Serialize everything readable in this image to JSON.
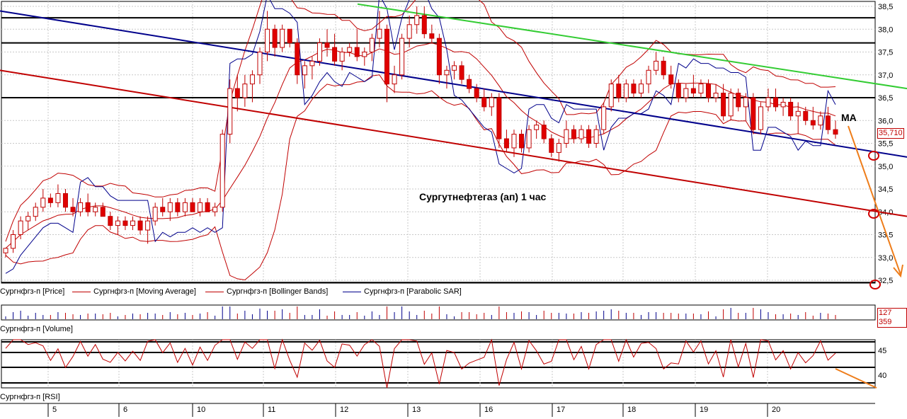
{
  "chart_data": {
    "type": "candlestick",
    "title": "",
    "annotation": "Сургутнефтегаз (ап)   1 час",
    "ma_label": "MA",
    "price_axis": {
      "min": 32.5,
      "max": 38.5,
      "ticks": [
        "32,5",
        "33,0",
        "33,5",
        "34,0",
        "34,5",
        "35,0",
        "35,5",
        "36,0",
        "36,5",
        "37,0",
        "37,5",
        "38,0",
        "38,5"
      ]
    },
    "last_price": "35,710",
    "x_ticks": [
      "5",
      "6",
      "10",
      "11",
      "12",
      "13",
      "16",
      "17",
      "18",
      "19",
      "20"
    ],
    "legend": [
      {
        "label": "Сургнфгз-п [Price]"
      },
      {
        "label": "Сургнфгз-п [Moving Average]",
        "color": "#c00000"
      },
      {
        "label": "Сургнфгз-п [Bollinger Bands]",
        "color": "#c00000"
      },
      {
        "label": "Сургнфгз-п [Parabolic SAR]",
        "color": "#00008b"
      }
    ],
    "volume": {
      "label": "Сургнфгз-п [Volume]",
      "last": "127 359"
    },
    "rsi": {
      "label": "Сургнфгз-п [RSI]",
      "ticks": [
        "45",
        "40"
      ]
    },
    "horizontal_levels": [
      36.5,
      37.7,
      38.25,
      32.45
    ],
    "trend_lines": [
      {
        "name": "blue",
        "color": "#00008b",
        "from": [
          0,
          38.4
        ],
        "to": [
          1281,
          35.2
        ]
      },
      {
        "name": "red",
        "color": "#c00000",
        "from": [
          0,
          37.1
        ],
        "to": [
          1281,
          33.9
        ]
      },
      {
        "name": "green",
        "color": "#33cc33",
        "from": [
          505,
          38.55
        ],
        "to": [
          1281,
          36.7
        ]
      }
    ],
    "candles": [
      [
        33.1,
        33.2,
        33.0,
        33.2
      ],
      [
        33.2,
        33.6,
        33.1,
        33.5
      ],
      [
        33.5,
        33.9,
        33.4,
        33.8
      ],
      [
        33.8,
        34.0,
        33.6,
        33.9
      ],
      [
        33.9,
        34.2,
        33.8,
        34.1
      ],
      [
        34.1,
        34.5,
        34.0,
        34.3
      ],
      [
        34.3,
        34.4,
        34.1,
        34.2
      ],
      [
        34.2,
        34.6,
        34.1,
        34.4
      ],
      [
        34.4,
        34.5,
        34.0,
        34.1
      ],
      [
        34.1,
        34.3,
        33.9,
        34.0
      ],
      [
        34.0,
        34.3,
        33.9,
        34.2
      ],
      [
        34.2,
        34.4,
        33.9,
        34.0
      ],
      [
        34.0,
        34.2,
        33.9,
        34.1
      ],
      [
        34.1,
        34.2,
        33.9,
        33.9
      ],
      [
        33.9,
        34.0,
        33.6,
        33.7
      ],
      [
        33.7,
        33.9,
        33.5,
        33.8
      ],
      [
        33.8,
        33.9,
        33.6,
        33.7
      ],
      [
        33.7,
        33.9,
        33.6,
        33.8
      ],
      [
        33.8,
        33.9,
        33.5,
        33.6
      ],
      [
        33.6,
        33.9,
        33.3,
        33.8
      ],
      [
        33.8,
        34.2,
        33.7,
        34.1
      ],
      [
        34.1,
        34.3,
        33.9,
        34.0
      ],
      [
        34.0,
        34.3,
        33.8,
        34.2
      ],
      [
        34.2,
        34.3,
        33.9,
        34.0
      ],
      [
        34.0,
        34.3,
        33.9,
        34.2
      ],
      [
        34.2,
        34.3,
        34.0,
        34.0
      ],
      [
        34.0,
        34.3,
        33.9,
        34.2
      ],
      [
        34.2,
        34.3,
        34.0,
        34.0
      ],
      [
        34.0,
        34.2,
        33.9,
        34.1
      ],
      [
        34.1,
        35.8,
        34.0,
        35.7
      ],
      [
        35.7,
        36.9,
        35.5,
        36.7
      ],
      [
        36.7,
        37.0,
        36.2,
        36.5
      ],
      [
        36.5,
        37.0,
        36.3,
        36.8
      ],
      [
        36.8,
        37.1,
        36.4,
        37.0
      ],
      [
        37.0,
        37.6,
        36.8,
        37.5
      ],
      [
        37.5,
        38.4,
        37.3,
        38.0
      ],
      [
        38.0,
        38.1,
        37.4,
        37.6
      ],
      [
        37.6,
        38.1,
        37.5,
        38.0
      ],
      [
        38.0,
        38.0,
        37.6,
        37.7
      ],
      [
        37.7,
        37.8,
        36.8,
        37.0
      ],
      [
        37.0,
        37.3,
        36.7,
        37.2
      ],
      [
        37.2,
        37.4,
        36.9,
        37.3
      ],
      [
        37.3,
        37.8,
        37.2,
        37.7
      ],
      [
        37.7,
        38.0,
        37.4,
        37.6
      ],
      [
        37.6,
        37.9,
        37.2,
        37.3
      ],
      [
        37.3,
        37.6,
        37.1,
        37.5
      ],
      [
        37.5,
        37.7,
        37.4,
        37.6
      ],
      [
        37.6,
        38.0,
        37.3,
        37.4
      ],
      [
        37.4,
        37.6,
        37.2,
        37.5
      ],
      [
        37.5,
        37.9,
        37.3,
        37.8
      ],
      [
        37.8,
        38.4,
        37.6,
        38.0
      ],
      [
        38.0,
        38.1,
        36.4,
        36.8
      ],
      [
        36.8,
        37.2,
        36.6,
        37.0
      ],
      [
        37.0,
        37.9,
        36.9,
        37.8
      ],
      [
        37.8,
        38.3,
        37.6,
        38.1
      ],
      [
        38.1,
        38.5,
        37.9,
        38.3
      ],
      [
        38.3,
        38.5,
        37.8,
        37.9
      ],
      [
        37.9,
        38.1,
        37.7,
        37.8
      ],
      [
        37.8,
        37.9,
        36.8,
        37.0
      ],
      [
        37.0,
        37.2,
        36.7,
        37.1
      ],
      [
        37.1,
        37.3,
        36.9,
        37.2
      ],
      [
        37.2,
        37.3,
        36.8,
        36.9
      ],
      [
        36.9,
        37.0,
        36.6,
        36.7
      ],
      [
        36.7,
        36.8,
        36.4,
        36.5
      ],
      [
        36.5,
        36.7,
        36.2,
        36.3
      ],
      [
        36.3,
        36.6,
        36.1,
        36.5
      ],
      [
        36.5,
        36.6,
        35.4,
        35.6
      ],
      [
        35.6,
        35.8,
        35.3,
        35.4
      ],
      [
        35.4,
        35.8,
        35.2,
        35.7
      ],
      [
        35.7,
        35.8,
        35.3,
        35.4
      ],
      [
        35.4,
        35.9,
        35.3,
        35.8
      ],
      [
        35.8,
        36.0,
        35.6,
        35.9
      ],
      [
        35.9,
        36.0,
        35.5,
        35.6
      ],
      [
        35.6,
        35.7,
        35.2,
        35.3
      ],
      [
        35.3,
        35.6,
        35.1,
        35.5
      ],
      [
        35.5,
        36.0,
        35.4,
        35.8
      ],
      [
        35.8,
        35.9,
        35.5,
        35.6
      ],
      [
        35.6,
        35.9,
        35.5,
        35.8
      ],
      [
        35.8,
        35.9,
        35.4,
        35.5
      ],
      [
        35.5,
        35.9,
        35.4,
        35.8
      ],
      [
        35.8,
        36.4,
        35.7,
        36.3
      ],
      [
        36.3,
        36.9,
        36.2,
        36.8
      ],
      [
        36.8,
        37.0,
        36.4,
        36.5
      ],
      [
        36.5,
        36.9,
        36.4,
        36.8
      ],
      [
        36.8,
        36.9,
        36.5,
        36.6
      ],
      [
        36.6,
        36.9,
        36.5,
        36.8
      ],
      [
        36.8,
        37.2,
        36.6,
        37.1
      ],
      [
        37.1,
        37.5,
        37.0,
        37.3
      ],
      [
        37.3,
        37.4,
        36.9,
        37.0
      ],
      [
        37.0,
        37.2,
        36.7,
        36.8
      ],
      [
        36.8,
        36.9,
        36.4,
        36.5
      ],
      [
        36.5,
        36.8,
        36.4,
        36.7
      ],
      [
        36.7,
        37.0,
        36.5,
        36.6
      ],
      [
        36.6,
        36.9,
        36.5,
        36.8
      ],
      [
        36.8,
        36.9,
        36.4,
        36.5
      ],
      [
        36.5,
        36.8,
        36.4,
        36.6
      ],
      [
        36.6,
        36.8,
        36.0,
        36.1
      ],
      [
        36.1,
        36.7,
        36.0,
        36.6
      ],
      [
        36.6,
        36.7,
        36.2,
        36.3
      ],
      [
        36.3,
        36.6,
        36.0,
        36.5
      ],
      [
        36.5,
        36.6,
        35.7,
        35.8
      ],
      [
        35.8,
        36.4,
        35.7,
        36.3
      ],
      [
        36.3,
        36.7,
        36.2,
        36.5
      ],
      [
        36.5,
        36.7,
        36.2,
        36.3
      ],
      [
        36.3,
        36.5,
        36.1,
        36.4
      ],
      [
        36.4,
        36.5,
        36.0,
        36.1
      ],
      [
        36.1,
        36.4,
        35.7,
        36.2
      ],
      [
        36.2,
        36.3,
        35.9,
        36.0
      ],
      [
        36.0,
        36.3,
        35.8,
        35.9
      ],
      [
        35.9,
        36.2,
        35.8,
        36.1
      ],
      [
        36.1,
        36.3,
        35.7,
        35.8
      ],
      [
        35.8,
        36.0,
        35.6,
        35.7
      ]
    ]
  }
}
